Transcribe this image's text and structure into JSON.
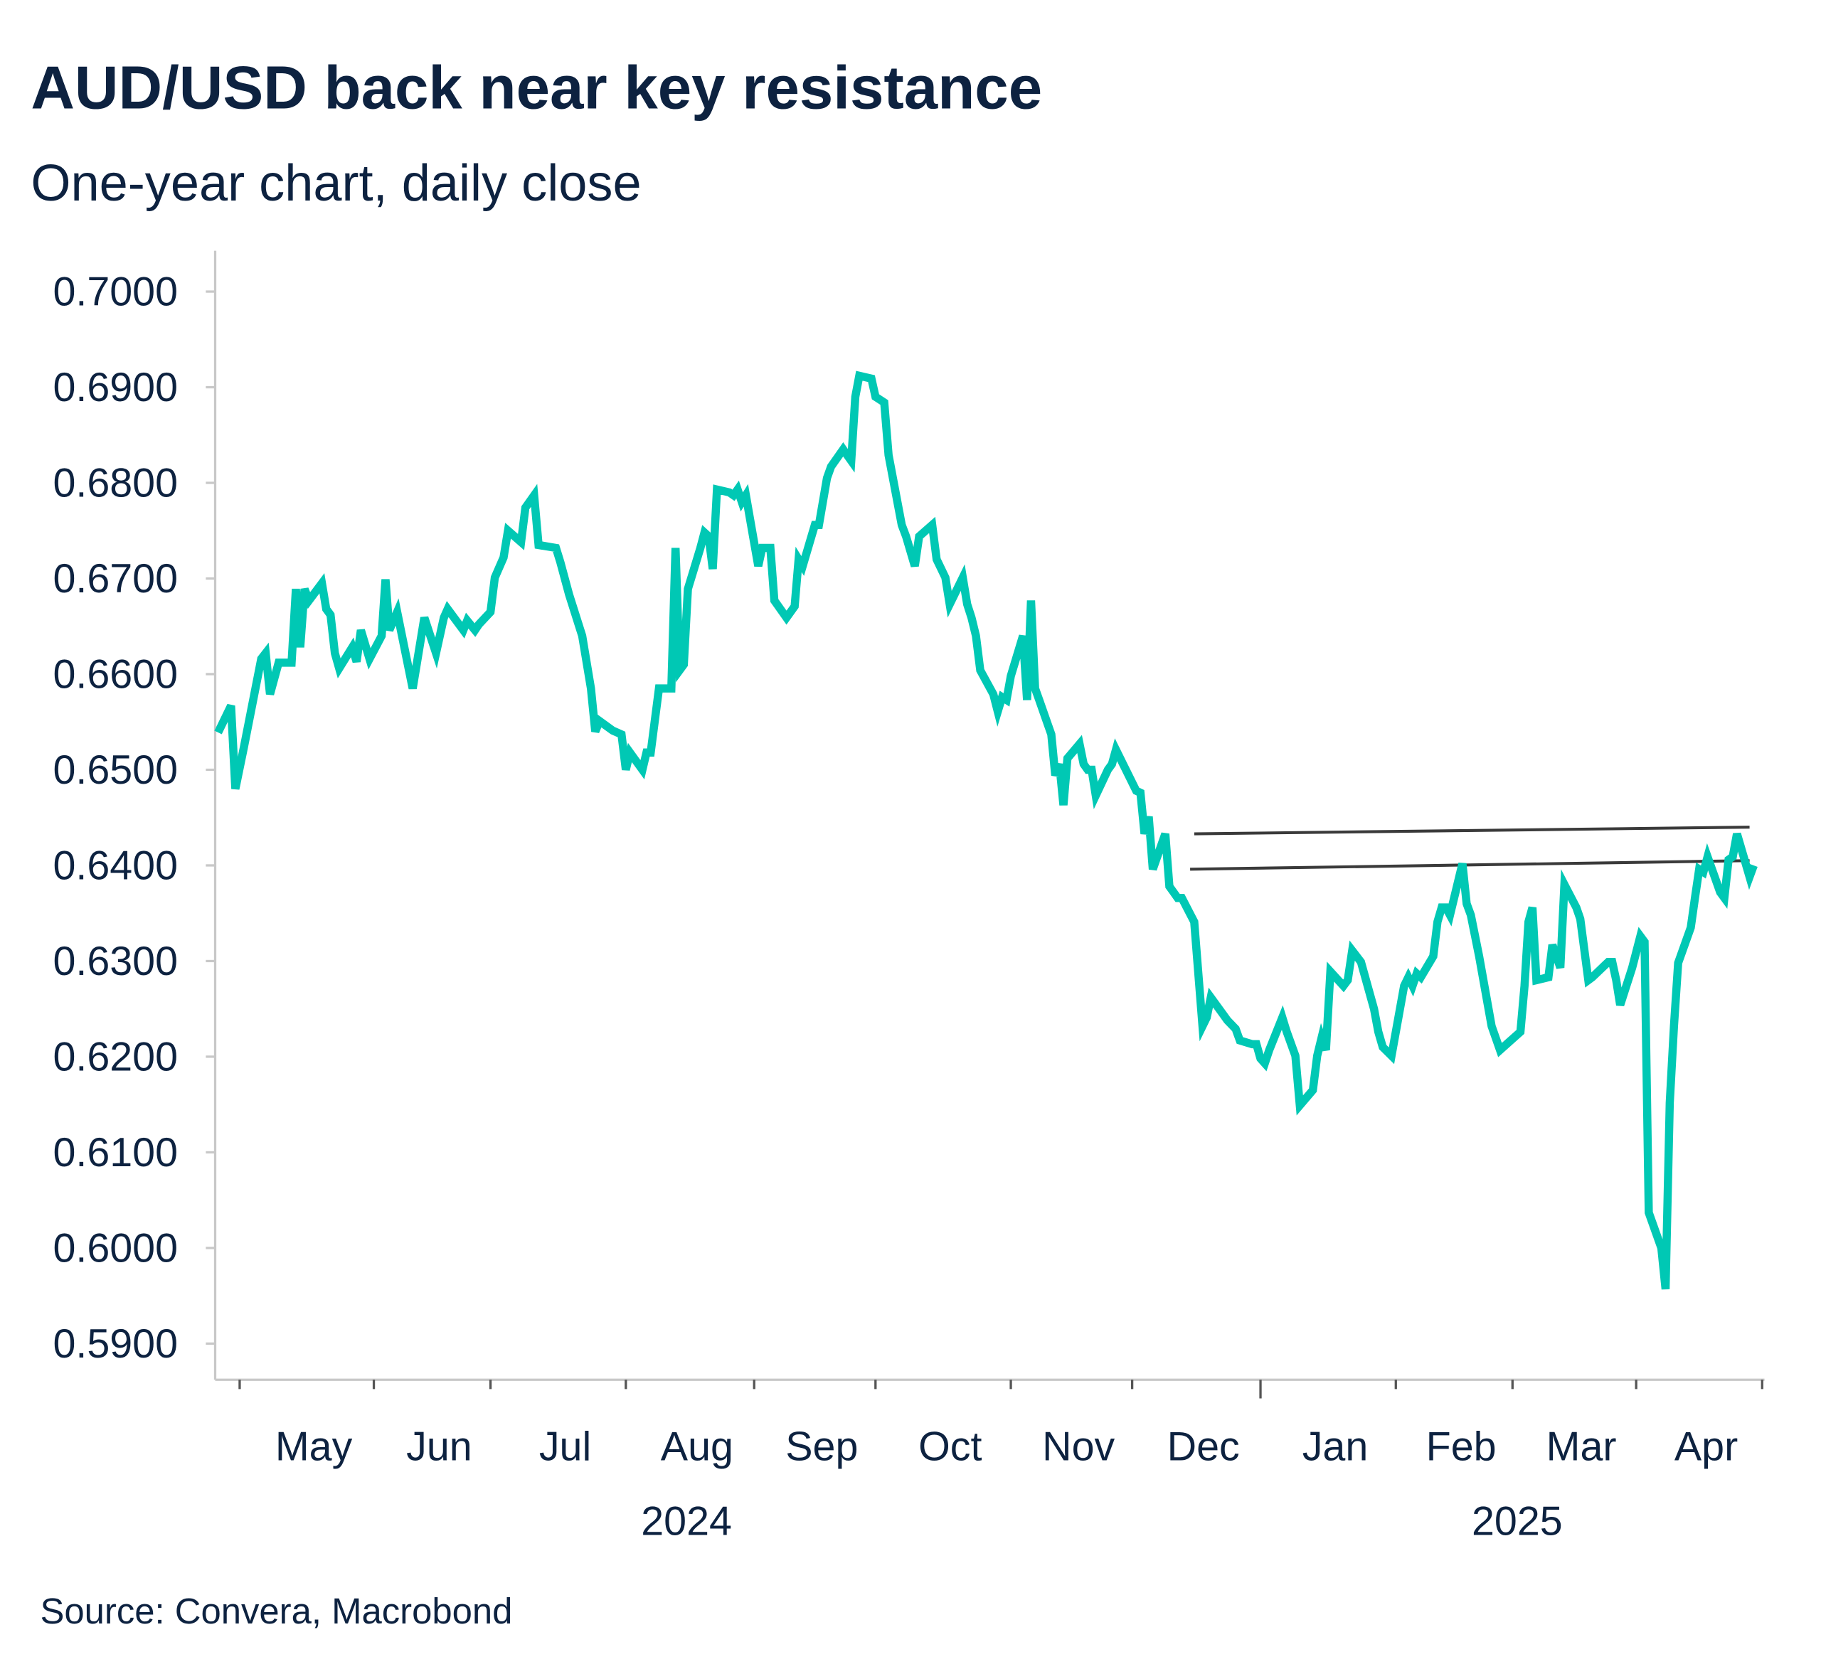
{
  "title": "AUD/USD back near key resistance",
  "subtitle": "One-year chart, daily close",
  "source": "Source: Convera, Macrobond",
  "colors": {
    "line": "#00C8B4",
    "resistance": "#3a3a3a",
    "text": "#0d2240"
  },
  "chart_data": {
    "type": "line",
    "title": "AUD/USD back near key resistance",
    "subtitle": "One-year chart, daily close",
    "xlabel": "",
    "ylabel": "",
    "ylim": [
      0.59,
      0.7
    ],
    "yticks": [
      "0.7000",
      "0.6900",
      "0.6800",
      "0.6700",
      "0.6600",
      "0.6500",
      "0.6400",
      "0.6300",
      "0.6200",
      "0.6100",
      "0.6000",
      "0.5900"
    ],
    "xticks": [
      "May",
      "Jun",
      "Jul",
      "Aug",
      "Sep",
      "Oct",
      "Nov",
      "Dec",
      "Jan",
      "Feb",
      "Mar",
      "Apr"
    ],
    "years": [
      "2024",
      "2025"
    ],
    "grid": false,
    "legend": "none",
    "series": [
      {
        "points": [
          [
            "2024-04-26",
            0.6539
          ],
          [
            "2024-04-29",
            0.6567
          ],
          [
            "2024-04-30",
            0.648
          ],
          [
            "2024-05-02",
            0.6524
          ],
          [
            "2024-05-06",
            0.6616
          ],
          [
            "2024-05-07",
            0.6622
          ],
          [
            "2024-05-08",
            0.6579
          ],
          [
            "2024-05-10",
            0.6612
          ],
          [
            "2024-05-13",
            0.6612
          ],
          [
            "2024-05-14",
            0.6689
          ],
          [
            "2024-05-15",
            0.6628
          ],
          [
            "2024-05-16",
            0.6689
          ],
          [
            "2024-05-17",
            0.6677
          ],
          [
            "2024-05-20",
            0.6695
          ],
          [
            "2024-05-21",
            0.6668
          ],
          [
            "2024-05-22",
            0.6662
          ],
          [
            "2024-05-23",
            0.6622
          ],
          [
            "2024-05-24",
            0.6606
          ],
          [
            "2024-05-27",
            0.6628
          ],
          [
            "2024-05-28",
            0.6613
          ],
          [
            "2024-05-29",
            0.6646
          ],
          [
            "2024-05-31",
            0.6616
          ],
          [
            "2024-06-03",
            0.664
          ],
          [
            "2024-06-04",
            0.6699
          ],
          [
            "2024-06-05",
            0.6646
          ],
          [
            "2024-06-07",
            0.6665
          ],
          [
            "2024-06-11",
            0.6585
          ],
          [
            "2024-06-12",
            0.661
          ],
          [
            "2024-06-14",
            0.6659
          ],
          [
            "2024-06-17",
            0.6622
          ],
          [
            "2024-06-19",
            0.6659
          ],
          [
            "2024-06-20",
            0.6668
          ],
          [
            "2024-06-24",
            0.6646
          ],
          [
            "2024-06-25",
            0.6656
          ],
          [
            "2024-06-27",
            0.6646
          ],
          [
            "2024-06-28",
            0.6652
          ],
          [
            "2024-07-01",
            0.6665
          ],
          [
            "2024-07-02",
            0.6701
          ],
          [
            "2024-07-04",
            0.6722
          ],
          [
            "2024-07-05",
            0.675
          ],
          [
            "2024-07-08",
            0.6738
          ],
          [
            "2024-07-09",
            0.6774
          ],
          [
            "2024-07-11",
            0.6787
          ],
          [
            "2024-07-12",
            0.6735
          ],
          [
            "2024-07-16",
            0.6732
          ],
          [
            "2024-07-17",
            0.6717
          ],
          [
            "2024-07-19",
            0.6683
          ],
          [
            "2024-07-22",
            0.664
          ],
          [
            "2024-07-24",
            0.6585
          ],
          [
            "2024-07-25",
            0.654
          ],
          [
            "2024-07-26",
            0.6551
          ],
          [
            "2024-07-29",
            0.6541
          ],
          [
            "2024-07-31",
            0.6537
          ],
          [
            "2024-08-01",
            0.65
          ],
          [
            "2024-08-02",
            0.6518
          ],
          [
            "2024-08-05",
            0.65
          ],
          [
            "2024-08-06",
            0.6518
          ],
          [
            "2024-08-07",
            0.6518
          ],
          [
            "2024-08-09",
            0.6585
          ],
          [
            "2024-08-12",
            0.6585
          ],
          [
            "2024-08-13",
            0.6732
          ],
          [
            "2024-08-14",
            0.6604
          ],
          [
            "2024-08-15",
            0.661
          ],
          [
            "2024-08-16",
            0.6689
          ],
          [
            "2024-08-19",
            0.6732
          ],
          [
            "2024-08-20",
            0.6748
          ],
          [
            "2024-08-21",
            0.6744
          ],
          [
            "2024-08-22",
            0.671
          ],
          [
            "2024-08-23",
            0.6793
          ],
          [
            "2024-08-26",
            0.679
          ],
          [
            "2024-08-27",
            0.6787
          ],
          [
            "2024-08-28",
            0.6793
          ],
          [
            "2024-08-29",
            0.678
          ],
          [
            "2024-08-30",
            0.6787
          ],
          [
            "2024-09-02",
            0.6713
          ],
          [
            "2024-09-03",
            0.6732
          ],
          [
            "2024-09-05",
            0.6732
          ],
          [
            "2024-09-06",
            0.6677
          ],
          [
            "2024-09-09",
            0.6659
          ],
          [
            "2024-09-11",
            0.6671
          ],
          [
            "2024-09-12",
            0.672
          ],
          [
            "2024-09-13",
            0.6713
          ],
          [
            "2024-09-16",
            0.6756
          ],
          [
            "2024-09-17",
            0.6756
          ],
          [
            "2024-09-19",
            0.6805
          ],
          [
            "2024-09-20",
            0.6817
          ],
          [
            "2024-09-23",
            0.6835
          ],
          [
            "2024-09-24",
            0.6829
          ],
          [
            "2024-09-25",
            0.6823
          ],
          [
            "2024-09-26",
            0.689
          ],
          [
            "2024-09-27",
            0.6912
          ],
          [
            "2024-09-30",
            0.6909
          ],
          [
            "2024-10-01",
            0.689
          ],
          [
            "2024-10-03",
            0.6884
          ],
          [
            "2024-10-04",
            0.6829
          ],
          [
            "2024-10-07",
            0.6756
          ],
          [
            "2024-10-08",
            0.6744
          ],
          [
            "2024-10-10",
            0.6713
          ],
          [
            "2024-10-11",
            0.6744
          ],
          [
            "2024-10-14",
            0.6756
          ],
          [
            "2024-10-15",
            0.672
          ],
          [
            "2024-10-17",
            0.6701
          ],
          [
            "2024-10-18",
            0.6673
          ],
          [
            "2024-10-21",
            0.6701
          ],
          [
            "2024-10-22",
            0.6673
          ],
          [
            "2024-10-23",
            0.6659
          ],
          [
            "2024-10-24",
            0.664
          ],
          [
            "2024-10-25",
            0.6604
          ],
          [
            "2024-10-28",
            0.6579
          ],
          [
            "2024-10-29",
            0.6561
          ],
          [
            "2024-10-30",
            0.6576
          ],
          [
            "2024-10-31",
            0.6573
          ],
          [
            "2024-11-01",
            0.6598
          ],
          [
            "2024-11-04",
            0.664
          ],
          [
            "2024-11-05",
            0.6573
          ],
          [
            "2024-11-06",
            0.6677
          ],
          [
            "2024-11-07",
            0.6585
          ],
          [
            "2024-11-08",
            0.6573
          ],
          [
            "2024-11-11",
            0.6537
          ],
          [
            "2024-11-12",
            0.6494
          ],
          [
            "2024-11-13",
            0.6506
          ],
          [
            "2024-11-14",
            0.6463
          ],
          [
            "2024-11-15",
            0.6512
          ],
          [
            "2024-11-18",
            0.6527
          ],
          [
            "2024-11-19",
            0.6506
          ],
          [
            "2024-11-20",
            0.65
          ],
          [
            "2024-11-21",
            0.65
          ],
          [
            "2024-11-22",
            0.6473
          ],
          [
            "2024-11-25",
            0.65
          ],
          [
            "2024-11-26",
            0.6506
          ],
          [
            "2024-11-27",
            0.6521
          ],
          [
            "2024-12-02",
            0.6478
          ],
          [
            "2024-12-03",
            0.6476
          ],
          [
            "2024-12-04",
            0.6433
          ],
          [
            "2024-12-05",
            0.6451
          ],
          [
            "2024-12-06",
            0.6396
          ],
          [
            "2024-12-09",
            0.6433
          ],
          [
            "2024-12-10",
            0.6378
          ],
          [
            "2024-12-11",
            0.6372
          ],
          [
            "2024-12-12",
            0.6366
          ],
          [
            "2024-12-13",
            0.6366
          ],
          [
            "2024-12-16",
            0.6341
          ],
          [
            "2024-12-18",
            0.6232
          ],
          [
            "2024-12-19",
            0.6241
          ],
          [
            "2024-12-20",
            0.6262
          ],
          [
            "2024-12-23",
            0.6244
          ],
          [
            "2024-12-24",
            0.6238
          ],
          [
            "2024-12-26",
            0.6229
          ],
          [
            "2024-12-27",
            0.6217
          ],
          [
            "2024-12-30",
            0.6213
          ],
          [
            "2024-12-31",
            0.6213
          ],
          [
            "2025-01-01",
            0.6198
          ],
          [
            "2025-01-02",
            0.6193
          ],
          [
            "2025-01-03",
            0.6207
          ],
          [
            "2025-01-06",
            0.6241
          ],
          [
            "2025-01-07",
            0.6226
          ],
          [
            "2025-01-09",
            0.6201
          ],
          [
            "2025-01-10",
            0.6149
          ],
          [
            "2025-01-13",
            0.6165
          ],
          [
            "2025-01-14",
            0.6201
          ],
          [
            "2025-01-15",
            0.622
          ],
          [
            "2025-01-16",
            0.6207
          ],
          [
            "2025-01-17",
            0.6289
          ],
          [
            "2025-01-20",
            0.6274
          ],
          [
            "2025-01-21",
            0.628
          ],
          [
            "2025-01-22",
            0.6311
          ],
          [
            "2025-01-24",
            0.6299
          ],
          [
            "2025-01-27",
            0.625
          ],
          [
            "2025-01-28",
            0.6226
          ],
          [
            "2025-01-29",
            0.621
          ],
          [
            "2025-01-31",
            0.6201
          ],
          [
            "2025-02-03",
            0.6274
          ],
          [
            "2025-02-04",
            0.6283
          ],
          [
            "2025-02-05",
            0.6274
          ],
          [
            "2025-02-06",
            0.6287
          ],
          [
            "2025-02-07",
            0.6283
          ],
          [
            "2025-02-10",
            0.6305
          ],
          [
            "2025-02-11",
            0.6341
          ],
          [
            "2025-02-12",
            0.6356
          ],
          [
            "2025-02-13",
            0.6356
          ],
          [
            "2025-02-14",
            0.6348
          ],
          [
            "2025-02-17",
            0.6402
          ],
          [
            "2025-02-18",
            0.636
          ],
          [
            "2025-02-19",
            0.6348
          ],
          [
            "2025-02-21",
            0.6305
          ],
          [
            "2025-02-24",
            0.6232
          ],
          [
            "2025-02-26",
            0.6207
          ],
          [
            "2025-03-03",
            0.6226
          ],
          [
            "2025-03-04",
            0.6274
          ],
          [
            "2025-03-05",
            0.6341
          ],
          [
            "2025-03-06",
            0.6356
          ],
          [
            "2025-03-07",
            0.628
          ],
          [
            "2025-03-10",
            0.6283
          ],
          [
            "2025-03-11",
            0.6317
          ],
          [
            "2025-03-13",
            0.6293
          ],
          [
            "2025-03-14",
            0.638
          ],
          [
            "2025-03-17",
            0.6356
          ],
          [
            "2025-03-18",
            0.6344
          ],
          [
            "2025-03-20",
            0.628
          ],
          [
            "2025-03-21",
            0.6283
          ],
          [
            "2025-03-24",
            0.6295
          ],
          [
            "2025-03-25",
            0.6299
          ],
          [
            "2025-03-26",
            0.6299
          ],
          [
            "2025-03-27",
            0.628
          ],
          [
            "2025-03-28",
            0.6254
          ],
          [
            "2025-03-31",
            0.6293
          ],
          [
            "2025-04-02",
            0.6326
          ],
          [
            "2025-04-03",
            0.632
          ],
          [
            "2025-04-04",
            0.6037
          ],
          [
            "2025-04-07",
            0.6
          ],
          [
            "2025-04-08",
            0.5957
          ],
          [
            "2025-04-09",
            0.6152
          ],
          [
            "2025-04-10",
            0.6232
          ],
          [
            "2025-04-11",
            0.6298
          ],
          [
            "2025-04-14",
            0.6335
          ],
          [
            "2025-04-15",
            0.6366
          ],
          [
            "2025-04-16",
            0.6396
          ],
          [
            "2025-04-17",
            0.6393
          ],
          [
            "2025-04-18",
            0.6409
          ],
          [
            "2025-04-21",
            0.6372
          ],
          [
            "2025-04-22",
            0.6366
          ],
          [
            "2025-04-23",
            0.6406
          ],
          [
            "2025-04-24",
            0.6409
          ],
          [
            "2025-04-25",
            0.6433
          ],
          [
            "2025-04-28",
            0.6388
          ],
          [
            "2025-04-29",
            0.64
          ]
        ]
      }
    ],
    "annotations": [
      {
        "type": "resistance-line",
        "from": [
          "2024-12-16",
          0.6433
        ],
        "to": [
          "2025-04-28",
          0.644
        ]
      },
      {
        "type": "resistance-line",
        "from": [
          "2024-12-15",
          0.6396
        ],
        "to": [
          "2025-04-28",
          0.6405
        ]
      }
    ]
  }
}
